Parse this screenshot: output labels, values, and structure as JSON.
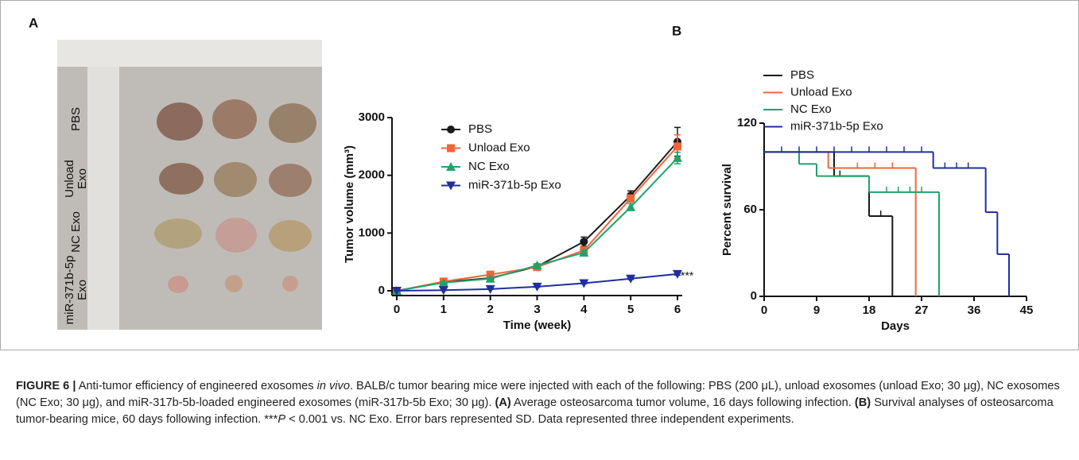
{
  "panel_labels": [
    "A",
    "B"
  ],
  "photo": {
    "row_labels": [
      [
        "PBS"
      ],
      [
        "Unload",
        "Exo"
      ],
      [
        "NC Exo"
      ],
      [
        "miR-371b-5p",
        "Exo"
      ]
    ]
  },
  "chart_data": [
    {
      "type": "line",
      "xlabel": "Time (week)",
      "ylabel": "Tumor volume (mm³)",
      "x": [
        0,
        1,
        2,
        3,
        4,
        5,
        6
      ],
      "xlim": [
        0,
        6
      ],
      "xticks": [
        0,
        1,
        2,
        3,
        4,
        5,
        6
      ],
      "ylim": [
        0,
        3000
      ],
      "yticks": [
        0,
        1000,
        2000,
        3000
      ],
      "legend": "upper left",
      "annotation": "***",
      "series": [
        {
          "name": "PBS",
          "color": "#1a1a1a",
          "marker": "circle",
          "values": [
            0,
            150,
            220,
            420,
            850,
            1650,
            2580
          ],
          "errors": [
            0,
            20,
            30,
            30,
            80,
            80,
            250
          ]
        },
        {
          "name": "Unload Exo",
          "color": "#f0663a",
          "marker": "square",
          "values": [
            0,
            160,
            280,
            410,
            700,
            1600,
            2500
          ],
          "errors": [
            0,
            20,
            20,
            20,
            40,
            60,
            200
          ]
        },
        {
          "name": "NC Exo",
          "color": "#1fa36b",
          "marker": "triangle",
          "values": [
            0,
            140,
            210,
            440,
            660,
            1450,
            2300
          ],
          "errors": [
            0,
            15,
            20,
            20,
            40,
            60,
            100
          ]
        },
        {
          "name": "miR-371b-5p Exo",
          "color": "#1f2f9e",
          "marker": "triangle-down",
          "values": [
            0,
            10,
            30,
            70,
            130,
            210,
            290
          ],
          "errors": [
            0,
            5,
            5,
            10,
            10,
            15,
            20
          ]
        }
      ]
    },
    {
      "type": "step",
      "xlabel": "Days",
      "ylabel": "Percent survival",
      "xlim": [
        0,
        45
      ],
      "xticks": [
        0,
        9,
        18,
        27,
        36,
        45
      ],
      "ylim": [
        0,
        120
      ],
      "yticks": [
        0,
        60,
        120
      ],
      "legend": "upper left",
      "series": [
        {
          "name": "PBS",
          "color": "#1a1a1a",
          "x": [
            0,
            12,
            18,
            22
          ],
          "values": [
            100,
            83.3,
            55.6,
            0
          ],
          "censored": {
            "x": [
              13,
              20
            ],
            "values": [
              83.3,
              55.6
            ]
          }
        },
        {
          "name": "Unload Exo",
          "color": "#f0663a",
          "x": [
            0,
            11,
            26
          ],
          "values": [
            100,
            88.9,
            0
          ],
          "censored": {
            "x": [
              16,
              19,
              22
            ],
            "values": [
              88.9,
              88.9,
              88.9
            ]
          }
        },
        {
          "name": "NC Exo",
          "color": "#1fa36b",
          "x": [
            0,
            6,
            9,
            18,
            30
          ],
          "values": [
            100,
            91.7,
            83.3,
            72.2,
            0
          ],
          "censored": {
            "x": [
              21,
              23,
              25,
              27
            ],
            "values": [
              72.2,
              72.2,
              72.2,
              72.2
            ]
          }
        },
        {
          "name": "miR-371b-5p Exo",
          "color": "#1f2f9e",
          "x": [
            0,
            29,
            38,
            40,
            42
          ],
          "values": [
            100,
            88.9,
            58.3,
            29.2,
            0
          ],
          "censored": {
            "x": [
              3,
              6,
              9,
              12,
              15,
              18,
              21,
              24,
              27,
              31,
              33,
              35
            ],
            "values": [
              100,
              100,
              100,
              100,
              100,
              100,
              100,
              100,
              100,
              88.9,
              88.9,
              88.9
            ]
          }
        }
      ]
    }
  ],
  "caption": {
    "runs": [
      {
        "text": "FIGURE 6 |",
        "style": "bold"
      },
      {
        "text": " Anti-tumor efficiency of engineered exosomes ",
        "style": "normal"
      },
      {
        "text": "in vivo",
        "style": "italic"
      },
      {
        "text": ". BALB/c tumor bearing mice were injected with each of the following: PBS (200 μL), unload exosomes (unload Exo; 30 μg), NC exosomes (NC Exo; 30 μg), and miR-317b-5b-loaded engineered exosomes (miR-317b-5b Exo; 30 μg). ",
        "style": "normal"
      },
      {
        "text": "(A)",
        "style": "bold"
      },
      {
        "text": " Average osteosarcoma tumor volume, 16 days following infection. ",
        "style": "normal"
      },
      {
        "text": "(B)",
        "style": "bold"
      },
      {
        "text": " Survival analyses of osteosarcoma tumor-bearing mice, 60 days following infection. ***",
        "style": "normal"
      },
      {
        "text": "P",
        "style": "italic"
      },
      {
        "text": " < 0.001 vs. NC Exo. Error bars represented SD. Data represented three independent experiments.",
        "style": "normal"
      }
    ]
  }
}
